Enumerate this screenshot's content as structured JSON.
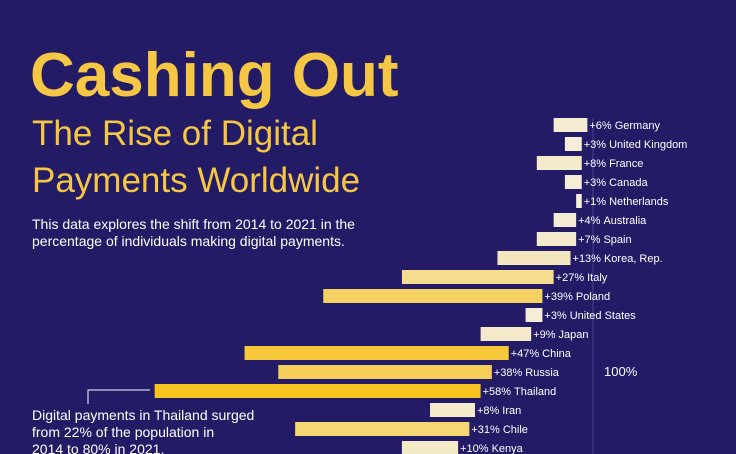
{
  "chart_data": {
    "type": "range-bar",
    "title": "Cashing Out",
    "subtitle": [
      "The Rise of Digital",
      "Payments Worldwide"
    ],
    "description": [
      "This data explores the shift from 2014 to 2021 in the",
      "percentage of individuals making digital payments."
    ],
    "annotation": [
      "Digital payments in Thailand surged",
      "from 22% of the population in",
      "2014 to 80% in 2021."
    ],
    "categories": [
      "Germany",
      "United Kingdom",
      "France",
      "Canada",
      "Netherlands",
      "Australia",
      "Spain",
      "Korea, Rep.",
      "Italy",
      "Poland",
      "United States",
      "Japan",
      "China",
      "Russia",
      "Thailand",
      "Iran",
      "Chile",
      "Kenya"
    ],
    "series": [
      {
        "name": "2014",
        "values": [
          93,
          95,
          90,
          95,
          97,
          93,
          90,
          83,
          66,
          52,
          88,
          80,
          38,
          44,
          22,
          71,
          47,
          66
        ]
      },
      {
        "name": "2021",
        "values": [
          99,
          98,
          98,
          98,
          98,
          97,
          97,
          96,
          93,
          91,
          91,
          89,
          85,
          82,
          80,
          79,
          78,
          76
        ]
      }
    ],
    "value_labels": [
      "+6%",
      "+3%",
      "+8%",
      "+3%",
      "+1%",
      "+4%",
      "+7%",
      "+13%",
      "+27%",
      "+39%",
      "+3%",
      "+9%",
      "+47%",
      "+38%",
      "+58%",
      "+8%",
      "+31%",
      "+10%"
    ],
    "colors": [
      "#f4edd3",
      "#f4eed8",
      "#f4ebcc",
      "#f4eed8",
      "#f4efdc",
      "#f4edd3",
      "#f4ebce",
      "#f4e7be",
      "#f5dc8e",
      "#f6d163",
      "#f4eed8",
      "#f4eaca",
      "#f7c83a",
      "#f6cf5b",
      "#f7c31f",
      "#f4ebcc",
      "#f5d774",
      "#f4e9c6"
    ],
    "xlim": [
      0,
      100
    ],
    "xticks": [
      {
        "value": 100,
        "label": "100%"
      }
    ]
  }
}
